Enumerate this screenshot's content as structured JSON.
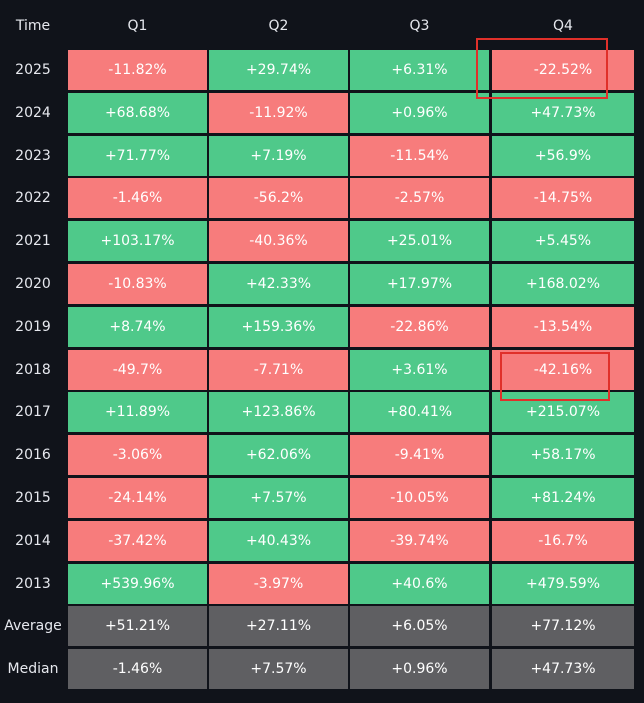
{
  "table": {
    "header": [
      "Time",
      "Q1",
      "Q2",
      "Q3",
      "Q4"
    ],
    "rows": [
      [
        "2025",
        "-11.82%",
        "+29.74%",
        "+6.31%",
        "-22.52%"
      ],
      [
        "2024",
        "+68.68%",
        "-11.92%",
        "+0.96%",
        "+47.73%"
      ],
      [
        "2023",
        "+71.77%",
        "+7.19%",
        "-11.54%",
        "+56.9%"
      ],
      [
        "2022",
        "-1.46%",
        "-56.2%",
        "-2.57%",
        "-14.75%"
      ],
      [
        "2021",
        "+103.17%",
        "-40.36%",
        "+25.01%",
        "+5.45%"
      ],
      [
        "2020",
        "-10.83%",
        "+42.33%",
        "+17.97%",
        "+168.02%"
      ],
      [
        "2019",
        "+8.74%",
        "+159.36%",
        "-22.86%",
        "-13.54%"
      ],
      [
        "2018",
        "-49.7%",
        "-7.71%",
        "+3.61%",
        "-42.16%"
      ],
      [
        "2017",
        "+11.89%",
        "+123.86%",
        "+80.41%",
        "+215.07%"
      ],
      [
        "2016",
        "-3.06%",
        "+62.06%",
        "-9.41%",
        "+58.17%"
      ],
      [
        "2015",
        "-24.14%",
        "+7.57%",
        "-10.05%",
        "+81.24%"
      ],
      [
        "2014",
        "-37.42%",
        "+40.43%",
        "-39.74%",
        "-16.7%"
      ],
      [
        "2013",
        "+539.96%",
        "-3.97%",
        "+40.6%",
        "+479.59%"
      ]
    ],
    "summary": [
      [
        "Average",
        "+51.21%",
        "+27.11%",
        "+6.05%",
        "+77.12%"
      ],
      [
        "Median",
        "-1.46%",
        "+7.57%",
        "+0.96%",
        "+47.73%"
      ]
    ]
  }
}
